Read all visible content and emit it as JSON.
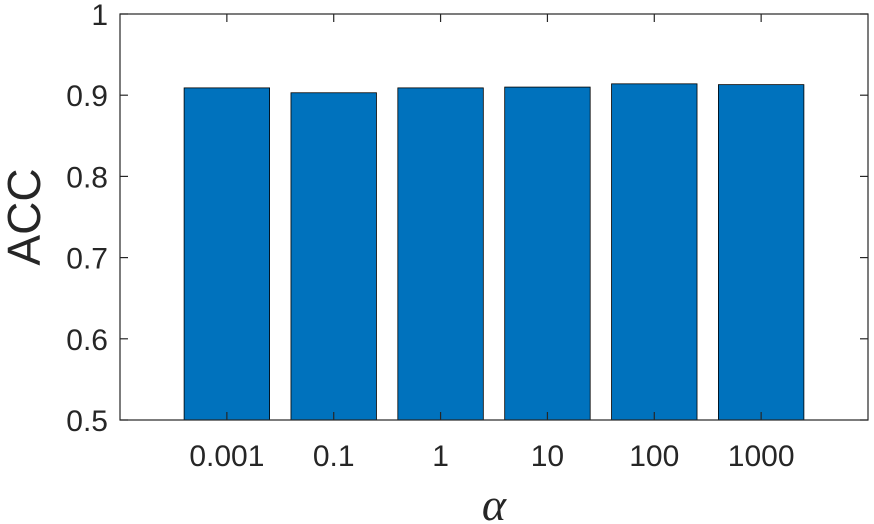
{
  "chart_data": {
    "type": "bar",
    "title": "",
    "xlabel": "α",
    "ylabel": "ACC",
    "categories": [
      "0.001",
      "0.1",
      "1",
      "10",
      "100",
      "1000"
    ],
    "values": [
      0.909,
      0.903,
      0.909,
      0.91,
      0.914,
      0.913
    ],
    "ylim": [
      0.5,
      1
    ],
    "yticks": [
      "0.5",
      "0.6",
      "0.7",
      "0.8",
      "0.9",
      "1"
    ],
    "bar_color": "#0072BD",
    "grid": false,
    "legend": "none"
  }
}
